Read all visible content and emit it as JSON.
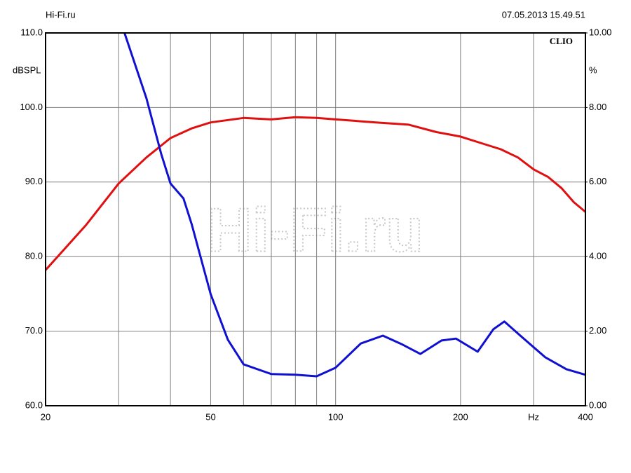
{
  "chart_data": {
    "type": "line",
    "header_left": "Hi-Fi.ru",
    "header_right": "07.05.2013 15.49.51",
    "brand": "CLIO",
    "watermark": "Hi-Fi.ru",
    "ylabel": "dBSPL",
    "y2label": "%",
    "xscale": "log",
    "grid": true,
    "xlim": [
      20,
      400
    ],
    "xticks": [
      20,
      50,
      100,
      200,
      {
        "value": 300,
        "label": "Hz"
      },
      400
    ],
    "xminor_ticks": [
      30,
      40,
      60,
      70,
      80,
      90
    ],
    "ylim": [
      60,
      110
    ],
    "yticks": [
      {
        "value": 60,
        "label": "60.0"
      },
      {
        "value": 70,
        "label": "70.0"
      },
      {
        "value": 80,
        "label": "80.0"
      },
      {
        "value": 90,
        "label": "90.0"
      },
      {
        "value": 100,
        "label": "100.0"
      },
      {
        "value": 110,
        "label": "110.0"
      }
    ],
    "y2lim": [
      0,
      10
    ],
    "y2ticks": [
      {
        "value": 0,
        "label": "0.00"
      },
      {
        "value": 2,
        "label": "2.00"
      },
      {
        "value": 4,
        "label": "4.00"
      },
      {
        "value": 6,
        "label": "6.00"
      },
      {
        "value": 8,
        "label": "8.00"
      },
      {
        "value": 10,
        "label": "10.00"
      }
    ],
    "series": [
      {
        "color": "#e01010",
        "x": [
          20,
          25,
          30,
          35,
          40,
          45,
          50,
          60,
          70,
          80,
          90,
          100,
          125,
          150,
          175,
          200,
          225,
          250,
          275,
          300,
          325,
          350,
          375,
          400
        ],
        "values": [
          78.2,
          84.2,
          89.8,
          93.3,
          95.9,
          97.2,
          98.0,
          98.6,
          98.4,
          98.7,
          98.6,
          98.4,
          98.0,
          97.7,
          96.7,
          96.1,
          95.2,
          94.4,
          93.3,
          91.7,
          90.7,
          89.2,
          87.3,
          86.0
        ]
      },
      {
        "color": "#1010d0",
        "axis": "y2",
        "x": [
          31,
          35,
          38,
          40,
          43,
          45,
          50,
          55,
          60,
          70,
          80,
          90,
          100,
          115,
          130,
          145,
          160,
          180,
          195,
          220,
          240,
          255,
          280,
          320,
          360,
          400
        ],
        "values": [
          10.0,
          8.25,
          6.75,
          5.96,
          5.56,
          4.87,
          2.99,
          1.77,
          1.11,
          0.85,
          0.83,
          0.79,
          1.02,
          1.67,
          1.88,
          1.64,
          1.39,
          1.75,
          1.8,
          1.45,
          2.05,
          2.26,
          1.86,
          1.3,
          0.98,
          0.83
        ]
      }
    ]
  }
}
